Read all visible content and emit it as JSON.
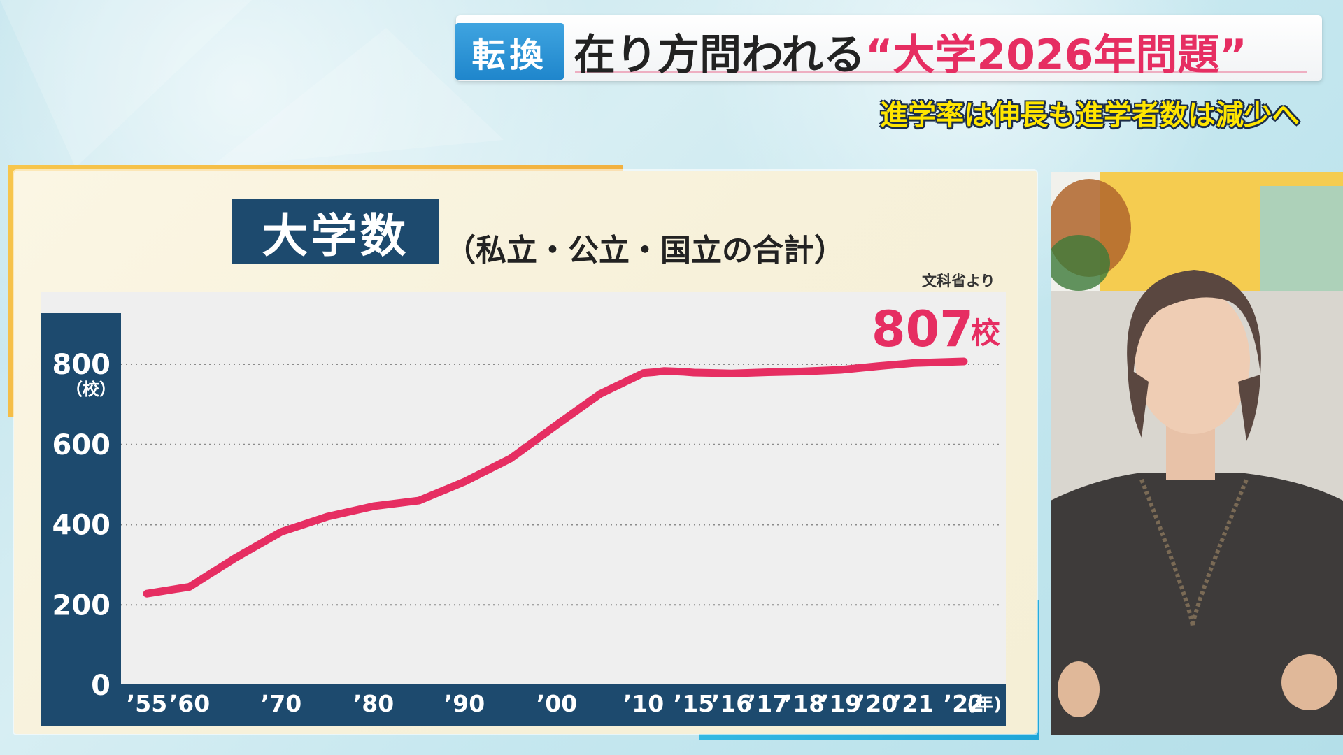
{
  "header": {
    "badge": "転換",
    "headline_prefix": "在り方問われる",
    "headline_highlight": "“大学2026年問題”",
    "subheadline": "進学率は伸長も進学者数は減少へ"
  },
  "board": {
    "title": "大学数",
    "subtitle": "（私立・公立・国立の合計）",
    "source_note": "文科省より"
  },
  "colors": {
    "badge_blue": "#2f96d8",
    "headline_pink": "#e62e62",
    "chart_line": "#e62e62",
    "axis_band": "#1d4a6e",
    "subheadline_yellow": "#ffe500"
  },
  "chart_data": {
    "type": "line",
    "x_tick_labels": [
      "’55",
      "’60",
      "’70",
      "’80",
      "’90",
      "’00",
      "’10",
      "’15",
      "’16",
      "’17",
      "’18",
      "’19",
      "’20",
      "’21",
      "’22"
    ],
    "x_unit_label": "(年)",
    "y_ticks": [
      0,
      200,
      400,
      600,
      800
    ],
    "y_unit_label": "（校）",
    "ylim": [
      0,
      800
    ],
    "series": [
      {
        "x": [
          "1955",
          "1960",
          "1965",
          "1970",
          "1975",
          "1980",
          "1985",
          "1990",
          "1995",
          "2000",
          "2005",
          "2010",
          "2011",
          "2012",
          "2013",
          "2014",
          "2015",
          "2016",
          "2017",
          "2018",
          "2019",
          "2020",
          "2021",
          "2022"
        ],
        "values": [
          228,
          245,
          317,
          382,
          420,
          446,
          460,
          507,
          565,
          649,
          726,
          778,
          780,
          783,
          782,
          781,
          779,
          777,
          780,
          782,
          786,
          795,
          803,
          807
        ]
      }
    ],
    "end_label": {
      "value": "807",
      "unit": "校"
    },
    "grid": "dotted horizontal"
  }
}
